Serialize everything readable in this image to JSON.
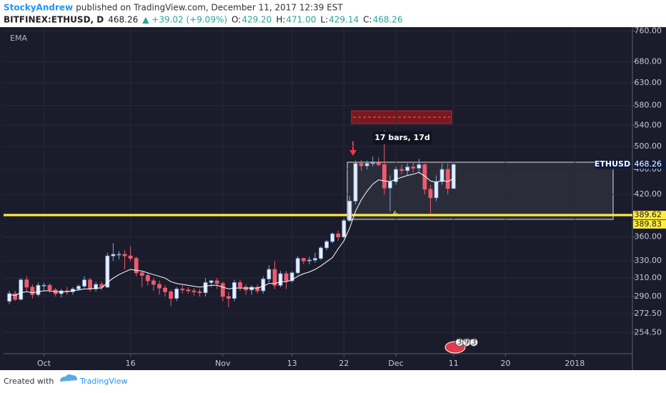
{
  "header": {
    "author": "StockyAndrew",
    "published": "published on TradingView.com, December 11, 2017 12:39 EST",
    "symbol": "BITFINEX:ETHUSD, D",
    "last": "468.26",
    "change": "▲ +39.02 (+9.09%)",
    "ohlc": [
      {
        "key": "O:",
        "value": "429.20"
      },
      {
        "key": "H:",
        "value": "471.00"
      },
      {
        "key": "L:",
        "value": "429.14"
      },
      {
        "key": "C:",
        "value": "468.26"
      }
    ]
  },
  "chart_data": {
    "type": "candlestick",
    "log_scale": true,
    "grid": true,
    "up_color": "#e9eefb",
    "up_stroke": "#7fa7d9",
    "down_color": "#ef5b6e",
    "xlim": [
      "2017-09-24",
      "2018-01-11"
    ],
    "xticks": [
      {
        "value": "2017-10-01",
        "label": "Oct"
      },
      {
        "value": "2017-10-16",
        "label": "16"
      },
      {
        "value": "2017-11-01",
        "label": "Nov"
      },
      {
        "value": "2017-11-13",
        "label": "13"
      },
      {
        "value": "2017-11-22",
        "label": "22"
      },
      {
        "value": "2017-12-01",
        "label": "Dec"
      },
      {
        "value": "2017-12-11",
        "label": "11"
      },
      {
        "value": "2017-12-20",
        "label": "20"
      },
      {
        "value": "2018-01-01",
        "label": "2018"
      }
    ],
    "ylim": [
      235.6,
      771
    ],
    "yticks": [
      {
        "value": 254.5,
        "label": "254.50"
      },
      {
        "value": 272.5,
        "label": "272.50"
      },
      {
        "value": 290,
        "label": "290.00"
      },
      {
        "value": 310,
        "label": "310.00"
      },
      {
        "value": 330,
        "label": "330.00"
      },
      {
        "value": 360,
        "label": "360.00"
      },
      {
        "value": 420,
        "label": "420.00"
      },
      {
        "value": 460,
        "label": "460.00"
      },
      {
        "value": 500,
        "label": "500.00"
      },
      {
        "value": 540,
        "label": "540.00"
      },
      {
        "value": 580,
        "label": "580.00"
      },
      {
        "value": 630,
        "label": "630.00"
      },
      {
        "value": 680,
        "label": "680.00"
      },
      {
        "value": 760,
        "label": "760.00"
      }
    ],
    "x": [
      "2017-09-25",
      "2017-09-26",
      "2017-09-27",
      "2017-09-28",
      "2017-09-29",
      "2017-09-30",
      "2017-10-01",
      "2017-10-02",
      "2017-10-03",
      "2017-10-04",
      "2017-10-05",
      "2017-10-06",
      "2017-10-07",
      "2017-10-08",
      "2017-10-09",
      "2017-10-10",
      "2017-10-11",
      "2017-10-12",
      "2017-10-13",
      "2017-10-14",
      "2017-10-15",
      "2017-10-16",
      "2017-10-17",
      "2017-10-18",
      "2017-10-19",
      "2017-10-20",
      "2017-10-21",
      "2017-10-22",
      "2017-10-23",
      "2017-10-24",
      "2017-10-25",
      "2017-10-26",
      "2017-10-27",
      "2017-10-28",
      "2017-10-29",
      "2017-10-30",
      "2017-10-31",
      "2017-11-01",
      "2017-11-02",
      "2017-11-03",
      "2017-11-04",
      "2017-11-05",
      "2017-11-06",
      "2017-11-07",
      "2017-11-08",
      "2017-11-09",
      "2017-11-10",
      "2017-11-11",
      "2017-11-12",
      "2017-11-13",
      "2017-11-14",
      "2017-11-15",
      "2017-11-16",
      "2017-11-17",
      "2017-11-18",
      "2017-11-19",
      "2017-11-20",
      "2017-11-21",
      "2017-11-22",
      "2017-11-23",
      "2017-11-24",
      "2017-11-25",
      "2017-11-26",
      "2017-11-27",
      "2017-11-28",
      "2017-11-29",
      "2017-11-30",
      "2017-12-01",
      "2017-12-02",
      "2017-12-03",
      "2017-12-04",
      "2017-12-05",
      "2017-12-06",
      "2017-12-07",
      "2017-12-08",
      "2017-12-09",
      "2017-12-10",
      "2017-12-11"
    ],
    "open": [
      285,
      293,
      287,
      308,
      300,
      292,
      302,
      302,
      297,
      293,
      296,
      295,
      298,
      301,
      308,
      298,
      303,
      300,
      336,
      338,
      338,
      336,
      333,
      316,
      313,
      307,
      303,
      299,
      295,
      288,
      298,
      297,
      296,
      295,
      294,
      305,
      307,
      304,
      290,
      288,
      305,
      300,
      297,
      300,
      296,
      309,
      320,
      302,
      315,
      307,
      316,
      333,
      330,
      331,
      333,
      346,
      354,
      364,
      360,
      382,
      410,
      470,
      466,
      470,
      471,
      468,
      430,
      440,
      460,
      458,
      464,
      462,
      468,
      428,
      415,
      440,
      460,
      429.2
    ],
    "high": [
      296,
      296,
      310,
      312,
      303,
      305,
      305,
      304,
      299,
      298,
      300,
      300,
      303,
      312,
      310,
      306,
      306,
      340,
      352,
      342,
      343,
      348,
      335,
      318,
      316,
      310,
      307,
      302,
      297,
      300,
      302,
      300,
      299,
      298,
      310,
      308,
      310,
      306,
      295,
      308,
      308,
      303,
      302,
      303,
      312,
      325,
      330,
      318,
      318,
      318,
      336,
      334,
      335,
      340,
      348,
      356,
      366,
      368,
      385,
      418,
      475,
      476,
      475,
      482,
      480,
      530,
      450,
      465,
      468,
      470,
      472,
      478,
      470,
      435,
      450,
      470,
      470,
      471
    ],
    "low": [
      282,
      285,
      286,
      295,
      288,
      290,
      296,
      294,
      290,
      289,
      292,
      292,
      296,
      299,
      295,
      295,
      297,
      299,
      330,
      332,
      320,
      330,
      312,
      300,
      302,
      296,
      292,
      290,
      280,
      285,
      293,
      293,
      291,
      290,
      290,
      300,
      298,
      285,
      279,
      285,
      296,
      292,
      292,
      293,
      293,
      305,
      298,
      300,
      298,
      305,
      314,
      326,
      326,
      328,
      331,
      343,
      352,
      355,
      358,
      380,
      405,
      458,
      460,
      465,
      465,
      420,
      395,
      435,
      452,
      450,
      455,
      455,
      420,
      392,
      410,
      435,
      420,
      429.14
    ],
    "close": [
      293,
      287,
      308,
      300,
      292,
      302,
      302,
      297,
      293,
      296,
      295,
      298,
      301,
      308,
      298,
      303,
      300,
      336,
      338,
      338,
      336,
      333,
      316,
      313,
      307,
      303,
      299,
      295,
      288,
      298,
      297,
      296,
      295,
      294,
      305,
      307,
      304,
      290,
      288,
      305,
      300,
      297,
      300,
      296,
      309,
      320,
      302,
      315,
      307,
      316,
      333,
      330,
      331,
      333,
      346,
      354,
      364,
      360,
      382,
      410,
      470,
      466,
      470,
      471,
      468,
      430,
      440,
      460,
      458,
      464,
      462,
      468,
      428,
      415,
      440,
      460,
      429.2,
      468.26
    ],
    "ema": {
      "name": "EMA",
      "color": "#ffffff",
      "values": [
        292,
        291,
        294,
        295,
        294,
        295,
        296,
        296,
        295,
        295,
        295,
        296,
        297,
        298,
        298,
        299,
        299,
        305,
        310,
        314,
        317,
        320,
        319,
        318,
        316,
        314,
        312,
        310,
        306,
        304,
        303,
        302,
        301,
        300,
        301,
        302,
        302,
        300,
        298,
        299,
        299,
        299,
        299,
        299,
        301,
        304,
        304,
        306,
        306,
        308,
        312,
        315,
        317,
        320,
        324,
        329,
        334,
        345,
        355,
        372,
        395,
        412,
        425,
        436,
        443,
        441,
        440,
        444,
        447,
        450,
        452,
        455,
        449,
        441,
        439,
        442,
        440,
        445
      ]
    },
    "hlines": [
      389.62,
      389.83
    ],
    "hline_color": "#ffeb3b",
    "symbol_label": "ETHUSD",
    "last_price": 468.26,
    "annotation": "17 bars, 17d",
    "event_badges": [
      "3",
      "9",
      "3"
    ]
  },
  "footer": {
    "created": "Created with",
    "brand": "TradingView"
  }
}
